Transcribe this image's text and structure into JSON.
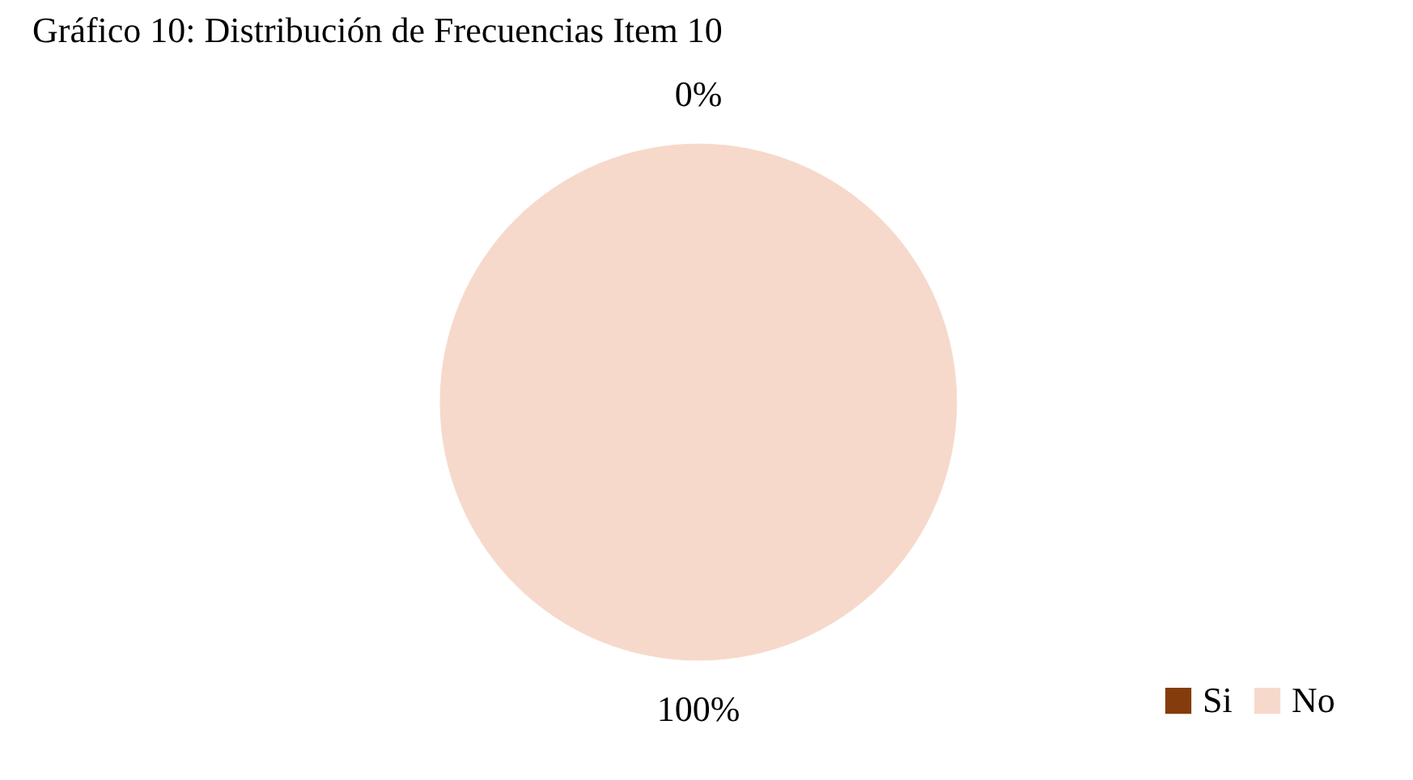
{
  "chart_data": {
    "type": "pie",
    "title": "Gráfico 10: Distribución de Frecuencias Item 10",
    "categories": [
      "Si",
      "No"
    ],
    "values": [
      0,
      100
    ],
    "colors": [
      "#843c0c",
      "#f6d9cb"
    ],
    "value_labels": [
      "0%",
      "100%"
    ],
    "legend": "bottom right"
  }
}
